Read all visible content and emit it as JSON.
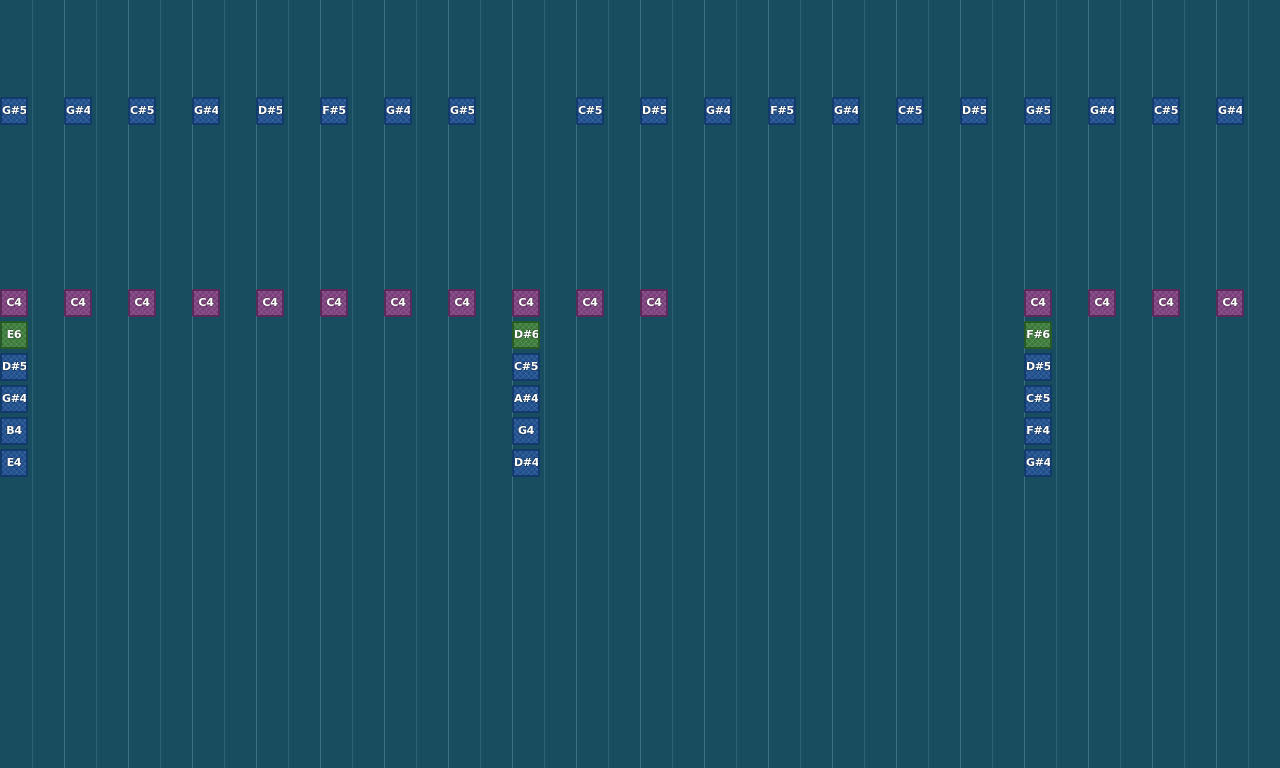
{
  "colors": {
    "background": "#184d60",
    "blue": "#1f4e8c",
    "pink": "#7a3f7a",
    "green": "#3c7a3a"
  },
  "notes": [
    {
      "col": 0,
      "row": 3,
      "label": "G#5",
      "color": "blue"
    },
    {
      "col": 2,
      "row": 3,
      "label": "G#4",
      "color": "blue"
    },
    {
      "col": 4,
      "row": 3,
      "label": "C#5",
      "color": "blue"
    },
    {
      "col": 6,
      "row": 3,
      "label": "G#4",
      "color": "blue"
    },
    {
      "col": 8,
      "row": 3,
      "label": "D#5",
      "color": "blue"
    },
    {
      "col": 10,
      "row": 3,
      "label": "F#5",
      "color": "blue"
    },
    {
      "col": 12,
      "row": 3,
      "label": "G#4",
      "color": "blue"
    },
    {
      "col": 14,
      "row": 3,
      "label": "G#5",
      "color": "blue"
    },
    {
      "col": 18,
      "row": 3,
      "label": "C#5",
      "color": "blue"
    },
    {
      "col": 20,
      "row": 3,
      "label": "D#5",
      "color": "blue"
    },
    {
      "col": 22,
      "row": 3,
      "label": "G#4",
      "color": "blue"
    },
    {
      "col": 24,
      "row": 3,
      "label": "F#5",
      "color": "blue"
    },
    {
      "col": 26,
      "row": 3,
      "label": "G#4",
      "color": "blue"
    },
    {
      "col": 28,
      "row": 3,
      "label": "C#5",
      "color": "blue"
    },
    {
      "col": 30,
      "row": 3,
      "label": "D#5",
      "color": "blue"
    },
    {
      "col": 32,
      "row": 3,
      "label": "G#5",
      "color": "blue"
    },
    {
      "col": 34,
      "row": 3,
      "label": "G#4",
      "color": "blue"
    },
    {
      "col": 36,
      "row": 3,
      "label": "C#5",
      "color": "blue"
    },
    {
      "col": 38,
      "row": 3,
      "label": "G#4",
      "color": "blue"
    },
    {
      "col": 0,
      "row": 9,
      "label": "C4",
      "color": "pink"
    },
    {
      "col": 2,
      "row": 9,
      "label": "C4",
      "color": "pink"
    },
    {
      "col": 4,
      "row": 9,
      "label": "C4",
      "color": "pink"
    },
    {
      "col": 6,
      "row": 9,
      "label": "C4",
      "color": "pink"
    },
    {
      "col": 8,
      "row": 9,
      "label": "C4",
      "color": "pink"
    },
    {
      "col": 10,
      "row": 9,
      "label": "C4",
      "color": "pink"
    },
    {
      "col": 12,
      "row": 9,
      "label": "C4",
      "color": "pink"
    },
    {
      "col": 14,
      "row": 9,
      "label": "C4",
      "color": "pink"
    },
    {
      "col": 16,
      "row": 9,
      "label": "C4",
      "color": "pink"
    },
    {
      "col": 18,
      "row": 9,
      "label": "C4",
      "color": "pink"
    },
    {
      "col": 20,
      "row": 9,
      "label": "C4",
      "color": "pink"
    },
    {
      "col": 32,
      "row": 9,
      "label": "C4",
      "color": "pink"
    },
    {
      "col": 34,
      "row": 9,
      "label": "C4",
      "color": "pink"
    },
    {
      "col": 36,
      "row": 9,
      "label": "C4",
      "color": "pink"
    },
    {
      "col": 38,
      "row": 9,
      "label": "C4",
      "color": "pink"
    },
    {
      "col": 0,
      "row": 10,
      "label": "E6",
      "color": "green"
    },
    {
      "col": 0,
      "row": 11,
      "label": "D#5",
      "color": "blue"
    },
    {
      "col": 0,
      "row": 12,
      "label": "G#4",
      "color": "blue"
    },
    {
      "col": 0,
      "row": 13,
      "label": "B4",
      "color": "blue"
    },
    {
      "col": 0,
      "row": 14,
      "label": "E4",
      "color": "blue"
    },
    {
      "col": 16,
      "row": 10,
      "label": "D#6",
      "color": "green"
    },
    {
      "col": 16,
      "row": 11,
      "label": "C#5",
      "color": "blue"
    },
    {
      "col": 16,
      "row": 12,
      "label": "A#4",
      "color": "blue"
    },
    {
      "col": 16,
      "row": 13,
      "label": "G4",
      "color": "blue"
    },
    {
      "col": 16,
      "row": 14,
      "label": "D#4",
      "color": "blue"
    },
    {
      "col": 32,
      "row": 10,
      "label": "F#6",
      "color": "green"
    },
    {
      "col": 32,
      "row": 11,
      "label": "D#5",
      "color": "blue"
    },
    {
      "col": 32,
      "row": 12,
      "label": "C#5",
      "color": "blue"
    },
    {
      "col": 32,
      "row": 13,
      "label": "F#4",
      "color": "blue"
    },
    {
      "col": 32,
      "row": 14,
      "label": "G#4",
      "color": "blue"
    }
  ]
}
